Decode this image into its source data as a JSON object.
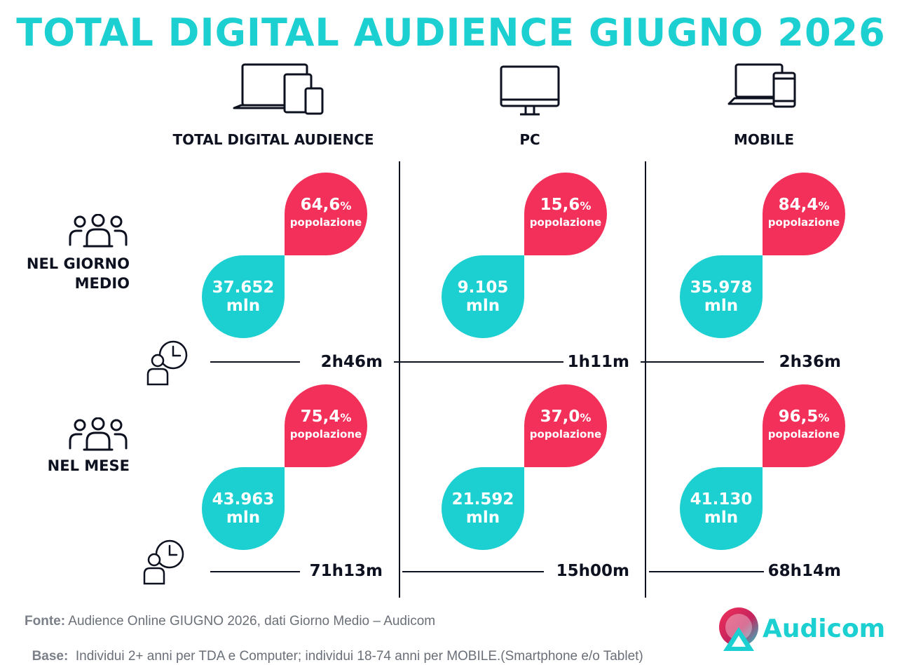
{
  "title": "TOTAL DIGITAL AUDIENCE GIUGNO 2026",
  "columns": [
    {
      "label": "TOTAL DIGITAL AUDIENCE",
      "icon": "multi-device-icon"
    },
    {
      "label": "PC",
      "icon": "desktop-monitor-icon"
    },
    {
      "label": "MOBILE",
      "icon": "laptop-phone-icon"
    }
  ],
  "rows": [
    {
      "label_lines": [
        "NEL GIORNO",
        "MEDIO"
      ],
      "icon": "people-group-icon",
      "time_icon": "person-clock-icon",
      "cells": [
        {
          "pct": "64,6",
          "pct_sign": "%",
          "pop_label": "popolazione",
          "value": "37.652",
          "unit": "mln",
          "time": "2h46m"
        },
        {
          "pct": "15,6",
          "pct_sign": "%",
          "pop_label": "popolazione",
          "value": "9.105",
          "unit": "mln",
          "time": "1h11m"
        },
        {
          "pct": "84,4",
          "pct_sign": "%",
          "pop_label": "popolazione",
          "value": "35.978",
          "unit": "mln",
          "time": "2h36m"
        }
      ]
    },
    {
      "label_lines": [
        "NEL MESE"
      ],
      "icon": "people-group-icon",
      "time_icon": "person-clock-icon",
      "cells": [
        {
          "pct": "75,4",
          "pct_sign": "%",
          "pop_label": "popolazione",
          "value": "43.963",
          "unit": "mln",
          "time": "71h13m"
        },
        {
          "pct": "37,0",
          "pct_sign": "%",
          "pop_label": "popolazione",
          "value": "21.592",
          "unit": "mln",
          "time": "15h00m"
        },
        {
          "pct": "96,5",
          "pct_sign": "%",
          "pop_label": "popolazione",
          "value": "41.130",
          "unit": "mln",
          "time": "68h14m"
        }
      ]
    }
  ],
  "footer": {
    "fonte_label": "Fonte:",
    "fonte_text": " Audience Online GIUGNO 2026, dati Giorno Medio – Audicom",
    "base_label": "Base:",
    "base_text": "  Individui 2+ anni per TDA e Computer; individui 18-74 anni per MOBILE.(Smartphone e/o Tablet)"
  },
  "logo": {
    "text": "Audicom",
    "icon": "audicom-logo-icon"
  },
  "colors": {
    "accent_teal": "#1ccfd1",
    "accent_red": "#f2305a",
    "text_dark": "#0e1220"
  }
}
